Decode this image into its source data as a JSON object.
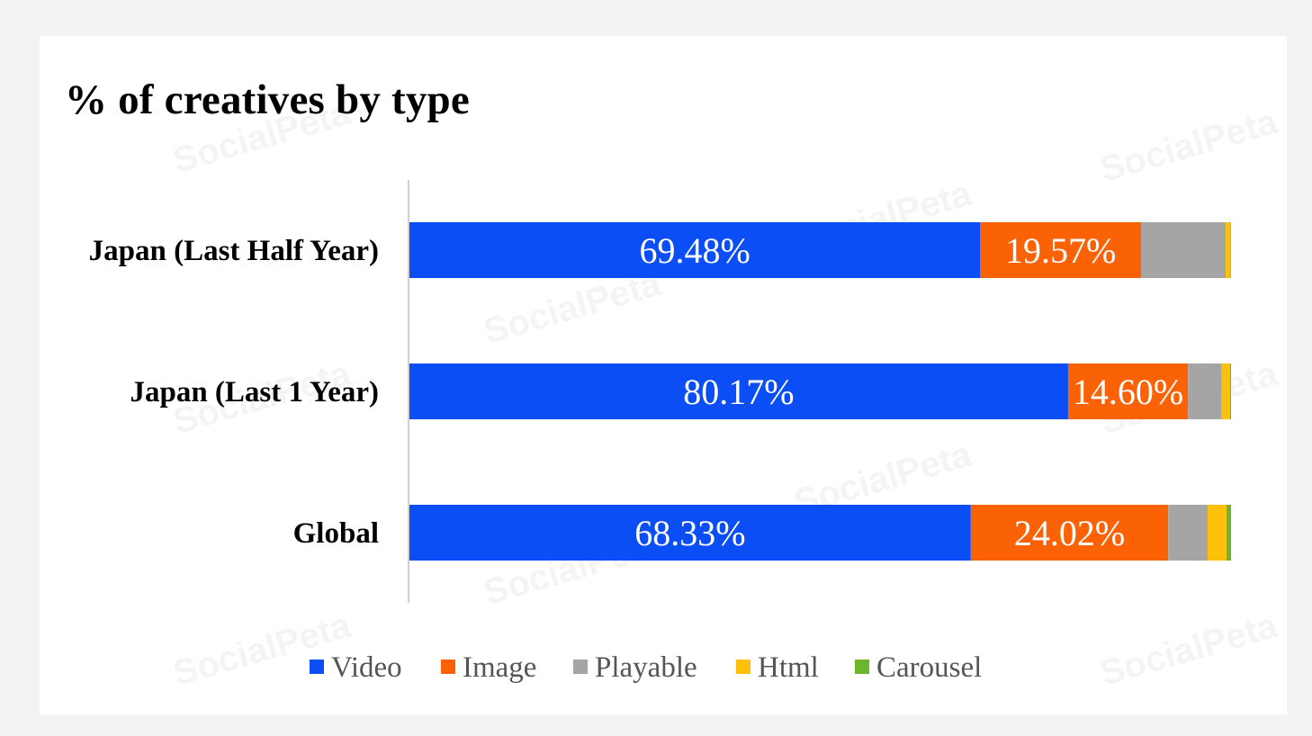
{
  "watermark_text": "SocialPeta",
  "chart_data": {
    "type": "bar",
    "orientation": "horizontal",
    "stacked": true,
    "title": "% of creatives by type",
    "categories": [
      "Japan (Last Half Year)",
      "Japan (Last 1 Year)",
      "Global"
    ],
    "series": [
      {
        "name": "Video",
        "color": "#0c4ef5",
        "values": [
          69.48,
          80.17,
          68.33
        ],
        "labels": [
          "69.48%",
          "80.17%",
          "68.33%"
        ]
      },
      {
        "name": "Image",
        "color": "#fb6205",
        "values": [
          19.57,
          14.6,
          24.02
        ],
        "labels": [
          "19.57%",
          "14.60%",
          "24.02%"
        ]
      },
      {
        "name": "Playable",
        "color": "#a5a5a5",
        "values": [
          10.3,
          4.1,
          4.8
        ],
        "labels": [
          "",
          "",
          ""
        ]
      },
      {
        "name": "Html",
        "color": "#fec10b",
        "values": [
          0.6,
          1.0,
          2.3
        ],
        "labels": [
          "",
          "",
          ""
        ]
      },
      {
        "name": "Carousel",
        "color": "#6db52a",
        "values": [
          0.05,
          0.13,
          0.55
        ],
        "labels": [
          "",
          "",
          ""
        ]
      }
    ],
    "xlim": [
      0,
      100
    ],
    "grid": false,
    "legend": "bottom"
  }
}
